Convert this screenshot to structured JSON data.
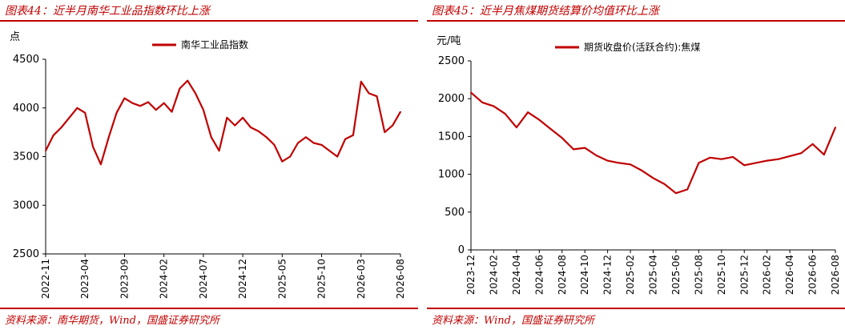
{
  "charts": [
    {
      "title": "图表44：近半月南华工业品指数环比上涨",
      "source": "资料来源：南华期货，Wind，国盛证券研究所",
      "line_color": "#c00000"
    },
    {
      "title": "图表45：近半月焦煤期货结算价均值环比上涨",
      "source": "资料来源：Wind，国盛证券研究所",
      "line_color": "#c00000"
    }
  ],
  "chart_data": [
    {
      "type": "line",
      "ylabel": "点",
      "ylim": [
        2500,
        4500
      ],
      "yticks": [
        "2500",
        "3000",
        "3500",
        "4000",
        "4500"
      ],
      "xlim": [
        "2022-11",
        "2026-08"
      ],
      "xticks": [
        "2022-11",
        "2023-04",
        "2023-09",
        "2024-02",
        "2024-07",
        "2024-12",
        "2025-05",
        "2025-10",
        "2026-03",
        "2026-08"
      ],
      "legend_position": "top-center",
      "series": [
        {
          "name": "南华工业品指数",
          "x": [
            "2022-11",
            "2022-12",
            "2023-01",
            "2023-02",
            "2023-03",
            "2023-04",
            "2023-05",
            "2023-06",
            "2023-07",
            "2023-08",
            "2023-09",
            "2023-10",
            "2023-11",
            "2023-12",
            "2024-01",
            "2024-02",
            "2024-03",
            "2024-04",
            "2024-05",
            "2024-06",
            "2024-07",
            "2024-08",
            "2024-09",
            "2024-10",
            "2024-11",
            "2024-12",
            "2025-01",
            "2025-02",
            "2025-03",
            "2025-04",
            "2025-05",
            "2025-06",
            "2025-07",
            "2025-08",
            "2025-09",
            "2025-10",
            "2025-11",
            "2025-12",
            "2026-01",
            "2026-02",
            "2026-03",
            "2026-04",
            "2026-05",
            "2026-06",
            "2026-07",
            "2026-08"
          ],
          "values": [
            3560,
            3720,
            3800,
            3900,
            4000,
            3950,
            3600,
            3420,
            3700,
            3950,
            4100,
            4050,
            4020,
            4060,
            3980,
            4050,
            3960,
            4200,
            4280,
            4150,
            3980,
            3700,
            3560,
            3900,
            3820,
            3900,
            3800,
            3760,
            3700,
            3620,
            3450,
            3500,
            3640,
            3700,
            3640,
            3620,
            3560,
            3500,
            3680,
            3720,
            4270,
            4150,
            4120,
            3750,
            3820,
            3960
          ]
        }
      ]
    },
    {
      "type": "line",
      "ylabel": "元/吨",
      "ylim": [
        0,
        2500
      ],
      "yticks": [
        "0",
        "500",
        "1000",
        "1500",
        "2000",
        "2500"
      ],
      "xlim": [
        "2023-12",
        "2026-08"
      ],
      "xticks": [
        "2023-12",
        "2024-02",
        "2024-04",
        "2024-06",
        "2024-08",
        "2024-10",
        "2024-12",
        "2025-02",
        "2025-04",
        "2025-06",
        "2025-08",
        "2025-10",
        "2025-12",
        "2026-02",
        "2026-04",
        "2026-06",
        "2026-08"
      ],
      "legend_position": "top-center",
      "series": [
        {
          "name": "期货收盘价(活跃合约):焦煤",
          "x": [
            "2023-12",
            "2024-01",
            "2024-02",
            "2024-03",
            "2024-04",
            "2024-05",
            "2024-06",
            "2024-07",
            "2024-08",
            "2024-09",
            "2024-10",
            "2024-11",
            "2024-12",
            "2025-01",
            "2025-02",
            "2025-03",
            "2025-04",
            "2025-05",
            "2025-06",
            "2025-07",
            "2025-08",
            "2025-09",
            "2025-10",
            "2025-11",
            "2025-12",
            "2026-01",
            "2026-02",
            "2026-03",
            "2026-04",
            "2026-05",
            "2026-06",
            "2026-07",
            "2026-08"
          ],
          "values": [
            2080,
            1950,
            1900,
            1800,
            1620,
            1820,
            1720,
            1600,
            1480,
            1330,
            1350,
            1250,
            1180,
            1150,
            1130,
            1050,
            950,
            870,
            750,
            800,
            1150,
            1220,
            1200,
            1230,
            1120,
            1150,
            1180,
            1200,
            1240,
            1280,
            1400,
            1260,
            1620
          ]
        }
      ]
    }
  ]
}
